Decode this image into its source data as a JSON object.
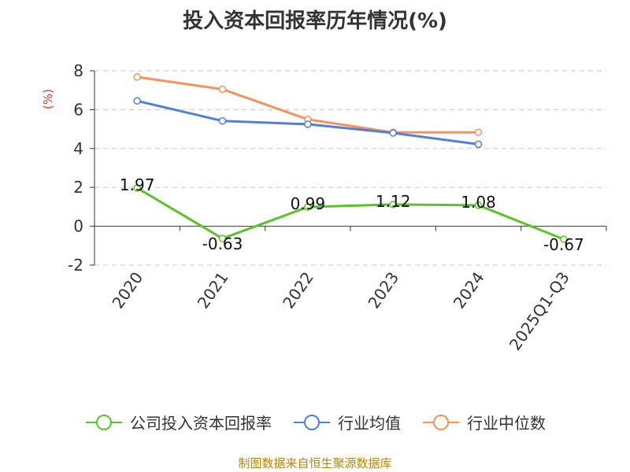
{
  "title": "投入资本回报率历年情况(%)",
  "footer": "制图数据来自恒生聚源数据库",
  "chart_data": {
    "type": "line",
    "title": "投入资本回报率历年情况(%)",
    "ylabel": "(%)",
    "xlabel": "",
    "ylim": [
      -2,
      8
    ],
    "yticks": [
      -2,
      0,
      2,
      4,
      6,
      8
    ],
    "grid": true,
    "legend_position": "bottom",
    "categories": [
      "2020",
      "2021",
      "2022",
      "2023",
      "2024",
      "2025Q1-Q3"
    ],
    "series": [
      {
        "name": "公司投入资本回报率",
        "color": "#5ac427",
        "values": [
          1.97,
          -0.63,
          0.99,
          1.12,
          1.08,
          -0.67
        ],
        "labels": [
          "1.97",
          "-0.63",
          "0.99",
          "1.12",
          "1.08",
          "-0.67"
        ]
      },
      {
        "name": "行业均值",
        "color": "#4f81dc",
        "values": [
          6.45,
          5.42,
          5.25,
          4.8,
          4.22,
          null
        ]
      },
      {
        "name": "行业中位数",
        "color": "#f6925a",
        "values": [
          7.68,
          7.05,
          5.5,
          4.83,
          4.83,
          null
        ]
      }
    ]
  }
}
